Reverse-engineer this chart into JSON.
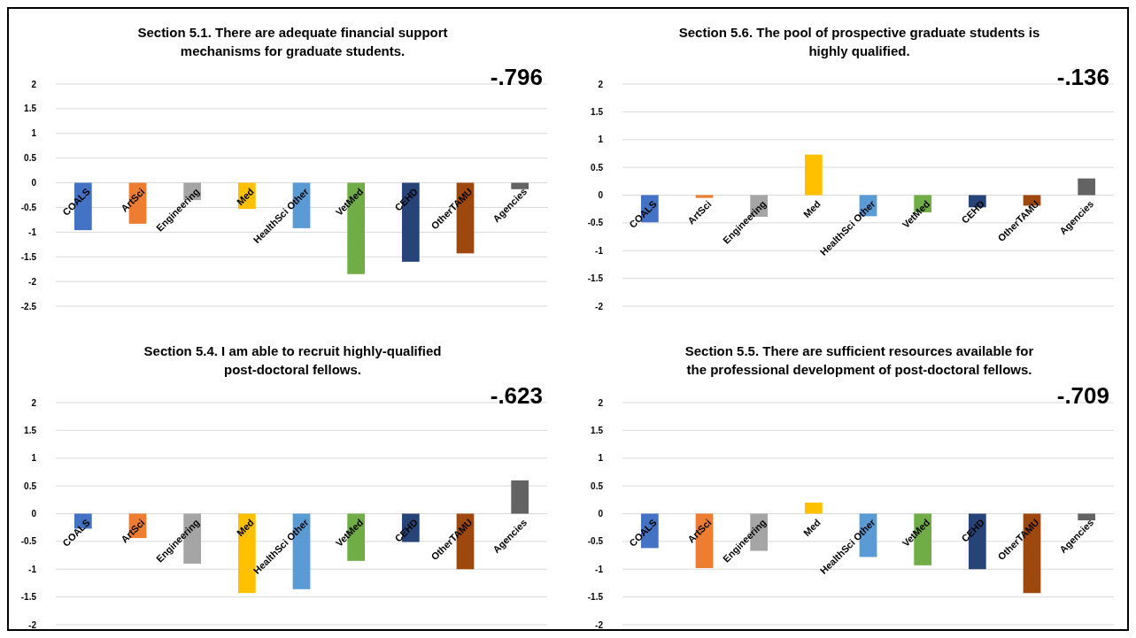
{
  "chart_data": [
    {
      "type": "bar",
      "title": "Section 5.1. There are adequate financial support mechanisms for graduate students.",
      "categories": [
        "COALS",
        "ArtSci",
        "Engineering",
        "Med",
        "HealthSci Other",
        "VetMed",
        "CEHD",
        "OtherTAMU",
        "Agencies"
      ],
      "values": [
        -0.96,
        -0.83,
        -0.35,
        -0.53,
        -0.92,
        -1.85,
        -1.6,
        -1.43,
        -0.13
      ],
      "colors": [
        "#4472c4",
        "#ed7d31",
        "#a5a5a5",
        "#ffc000",
        "#5b9bd5",
        "#70ad47",
        "#264478",
        "#9e480e",
        "#636363"
      ],
      "ylim": [
        -2.5,
        2
      ],
      "yticks": [
        {
          "value": -2.5,
          "label": "-2.5"
        },
        {
          "value": -2,
          "label": "-2"
        },
        {
          "value": -1.5,
          "label": "-1.5"
        },
        {
          "value": -1,
          "label": "-1"
        },
        {
          "value": -0.5,
          "label": "-0.5"
        },
        {
          "value": 0,
          "label": "0"
        },
        {
          "value": 0.5,
          "label": "0.5"
        },
        {
          "value": 1,
          "label": "1"
        },
        {
          "value": 1.5,
          "label": "1.5"
        },
        {
          "value": 2,
          "label": "2"
        }
      ],
      "grid": "y",
      "annotations": [
        "-.796"
      ]
    },
    {
      "type": "bar",
      "title": "Section 5.6. The pool of prospective graduate students is highly qualified.",
      "categories": [
        "COALS",
        "ArtSci",
        "Engineering",
        "Med",
        "HealthSci Other",
        "VetMed",
        "CEHD",
        "OtherTAMU",
        "Agencies"
      ],
      "values": [
        -0.49,
        -0.05,
        -0.39,
        0.73,
        -0.38,
        -0.31,
        -0.22,
        -0.19,
        0.3
      ],
      "colors": [
        "#4472c4",
        "#ed7d31",
        "#a5a5a5",
        "#ffc000",
        "#5b9bd5",
        "#70ad47",
        "#264478",
        "#9e480e",
        "#636363"
      ],
      "ylim": [
        -2,
        2
      ],
      "yticks": [
        {
          "value": -2,
          "label": "-2"
        },
        {
          "value": -1.5,
          "label": "-1.5"
        },
        {
          "value": -1,
          "label": "-1"
        },
        {
          "value": -0.5,
          "label": "-0.5"
        },
        {
          "value": 0,
          "label": "0"
        },
        {
          "value": 0.5,
          "label": "0.5"
        },
        {
          "value": 1,
          "label": "1"
        },
        {
          "value": 1.5,
          "label": "1.5"
        },
        {
          "value": 2,
          "label": "2"
        }
      ],
      "grid": "y",
      "annotations": [
        "-.136"
      ]
    },
    {
      "type": "bar",
      "title": "Section 5.4. I am able to recruit highly-qualified post-doctoral fellows.",
      "categories": [
        "COALS",
        "ArtSci",
        "Engineering",
        "Med",
        "HealthSci Other",
        "VetMed",
        "CEHD",
        "OtherTAMU",
        "Agencies"
      ],
      "values": [
        -0.27,
        -0.44,
        -0.9,
        -1.43,
        -1.36,
        -0.85,
        -0.51,
        -1.0,
        0.6
      ],
      "colors": [
        "#4472c4",
        "#ed7d31",
        "#a5a5a5",
        "#ffc000",
        "#5b9bd5",
        "#70ad47",
        "#264478",
        "#9e480e",
        "#636363"
      ],
      "ylim": [
        -2,
        2
      ],
      "yticks": [
        {
          "value": -2,
          "label": "-2"
        },
        {
          "value": -1.5,
          "label": "-1.5"
        },
        {
          "value": -1,
          "label": "-1"
        },
        {
          "value": -0.5,
          "label": "-0.5"
        },
        {
          "value": 0,
          "label": "0"
        },
        {
          "value": 0.5,
          "label": "0.5"
        },
        {
          "value": 1,
          "label": "1"
        },
        {
          "value": 1.5,
          "label": "1.5"
        },
        {
          "value": 2,
          "label": "2"
        }
      ],
      "grid": "y",
      "annotations": [
        "-.623"
      ]
    },
    {
      "type": "bar",
      "title": "Section 5.5. There are sufficient resources available for the professional development of post-doctoral fellows.",
      "categories": [
        "COALS",
        "ArtSci",
        "Engineering",
        "Med",
        "HealthSci Other",
        "VetMed",
        "CEHD",
        "OtherTAMU",
        "Agencies"
      ],
      "values": [
        -0.62,
        -0.98,
        -0.67,
        0.2,
        -0.78,
        -0.93,
        -1.0,
        -1.43,
        -0.12
      ],
      "colors": [
        "#4472c4",
        "#ed7d31",
        "#a5a5a5",
        "#ffc000",
        "#5b9bd5",
        "#70ad47",
        "#264478",
        "#9e480e",
        "#636363"
      ],
      "ylim": [
        -2,
        2
      ],
      "yticks": [
        {
          "value": -2,
          "label": "-2"
        },
        {
          "value": -1.5,
          "label": "-1.5"
        },
        {
          "value": -1,
          "label": "-1"
        },
        {
          "value": -0.5,
          "label": "-0.5"
        },
        {
          "value": 0,
          "label": "0"
        },
        {
          "value": 0.5,
          "label": "0.5"
        },
        {
          "value": 1,
          "label": "1"
        },
        {
          "value": 1.5,
          "label": "1.5"
        },
        {
          "value": 2,
          "label": "2"
        }
      ],
      "grid": "y",
      "annotations": [
        "-.709"
      ]
    }
  ]
}
